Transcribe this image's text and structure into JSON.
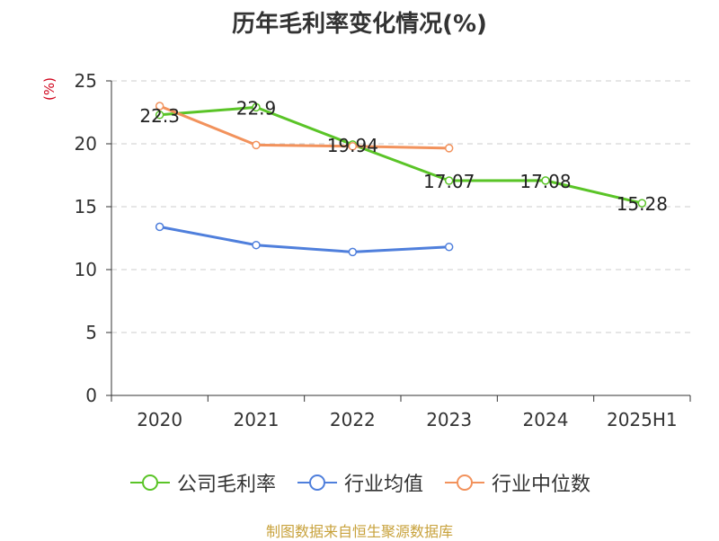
{
  "title": "历年毛利率变化情况(%)",
  "unit": "(%)",
  "source": "制图数据来自恒生聚源数据库",
  "chart_data": {
    "type": "line",
    "categories": [
      "2020",
      "2021",
      "2022",
      "2023",
      "2024",
      "2025H1"
    ],
    "ylim": [
      0,
      25
    ],
    "yticks": [
      0,
      5,
      10,
      15,
      20,
      25
    ],
    "grid": true,
    "legend_position": "bottom",
    "series": [
      {
        "name": "公司毛利率",
        "color": "#5ac427",
        "values": [
          22.3,
          22.9,
          19.94,
          17.07,
          17.08,
          15.28
        ],
        "labels": [
          "22.3",
          "22.9",
          "19.94",
          "17.07",
          "17.08",
          "15.28"
        ]
      },
      {
        "name": "行业均值",
        "color": "#4f7fdc",
        "values": [
          13.4,
          11.95,
          11.4,
          11.8,
          null,
          null
        ]
      },
      {
        "name": "行业中位数",
        "color": "#f2925c",
        "values": [
          23.0,
          19.9,
          19.8,
          19.65,
          null,
          null
        ]
      }
    ]
  }
}
